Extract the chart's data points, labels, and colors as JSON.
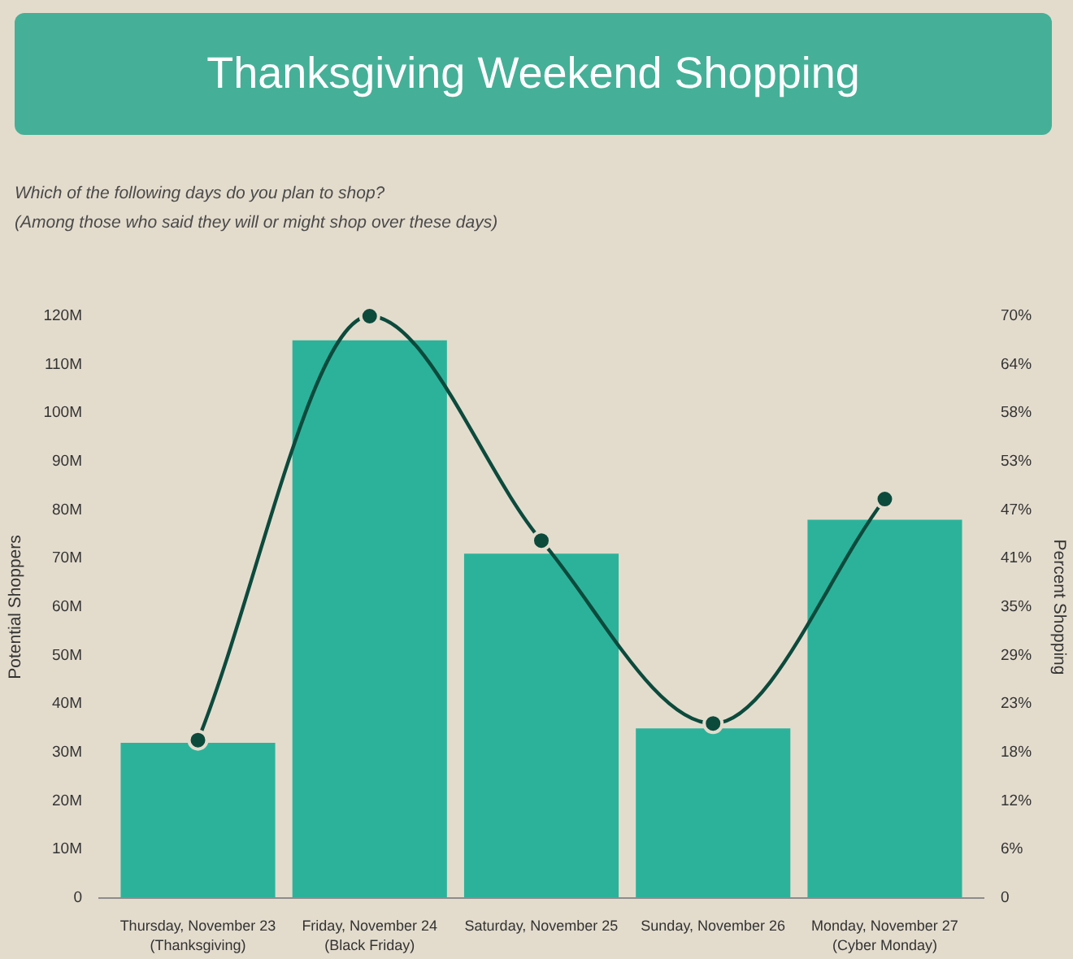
{
  "chart_data": {
    "type": "bar",
    "title": "Thanksgiving Weekend Shopping",
    "subtitle": "Which of the following days do you plan to shop?\n(Among those who said they will or might shop over these days)",
    "ylabel": "Potential Shoppers",
    "y2label": "Percent Shopping",
    "categories": [
      "Thursday, November 23\n(Thanksgiving)",
      "Friday, November 24\n(Black Friday)",
      "Saturday, November 25",
      "Sunday, November 26",
      "Monday, November 27\n(Cyber Monday)"
    ],
    "series": [
      {
        "color": "#2cb29a",
        "values": [
          32,
          115,
          71,
          35,
          78
        ]
      },
      {
        "type": "line",
        "axis": "y2",
        "color": "#0c4a3c",
        "values": [
          19,
          70,
          43,
          21,
          48
        ]
      }
    ],
    "marker": "circle",
    "line_style": "solid",
    "ylim": [
      0,
      120
    ],
    "yticks": [
      0,
      {
        "value": 10,
        "label": "10M"
      },
      {
        "value": 20,
        "label": "20M"
      },
      {
        "value": 30,
        "label": "30M"
      },
      {
        "value": 40,
        "label": "40M"
      },
      {
        "value": 50,
        "label": "50M"
      },
      {
        "value": 60,
        "label": "60M"
      },
      {
        "value": 70,
        "label": "70M"
      },
      {
        "value": 80,
        "label": "80M"
      },
      {
        "value": 90,
        "label": "90M"
      },
      {
        "value": 100,
        "label": "100M"
      },
      {
        "value": 110,
        "label": "110M"
      },
      {
        "value": 120,
        "label": "120M"
      }
    ],
    "y2lim": [
      0,
      70
    ],
    "y2ticks": [
      0,
      {
        "value": 5.83,
        "label": "6%"
      },
      {
        "value": 11.67,
        "label": "12%"
      },
      {
        "value": 17.5,
        "label": "18%"
      },
      {
        "value": 23.33,
        "label": "23%"
      },
      {
        "value": 29.17,
        "label": "29%"
      },
      {
        "value": 35,
        "label": "35%"
      },
      {
        "value": 40.83,
        "label": "41%"
      },
      {
        "value": 46.67,
        "label": "47%"
      },
      {
        "value": 52.5,
        "label": "53%"
      },
      {
        "value": 58.33,
        "label": "58%"
      },
      {
        "value": 64.17,
        "label": "64%"
      },
      {
        "value": 70,
        "label": "70%"
      }
    ]
  }
}
